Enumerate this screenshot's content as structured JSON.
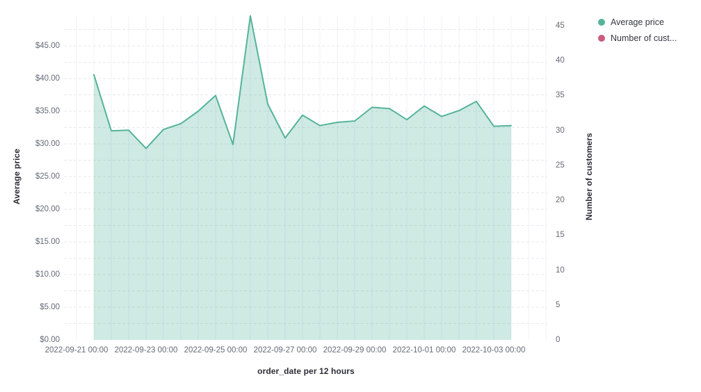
{
  "chart_data": {
    "type": "area",
    "title": "",
    "xlabel": "order_date per 12 hours",
    "y_left_label": "Average price",
    "y_right_label": "Number of customers",
    "x": [
      "2022-09-21 12:00",
      "2022-09-22 00:00",
      "2022-09-22 12:00",
      "2022-09-23 00:00",
      "2022-09-23 12:00",
      "2022-09-24 00:00",
      "2022-09-24 12:00",
      "2022-09-25 00:00",
      "2022-09-25 12:00",
      "2022-09-26 00:00",
      "2022-09-26 12:00",
      "2022-09-27 00:00",
      "2022-09-27 12:00",
      "2022-09-28 00:00",
      "2022-09-28 12:00",
      "2022-09-29 00:00",
      "2022-09-29 12:00",
      "2022-09-30 00:00",
      "2022-09-30 12:00",
      "2022-10-01 00:00",
      "2022-10-01 12:00",
      "2022-10-02 00:00",
      "2022-10-02 12:00",
      "2022-10-03 00:00",
      "2022-10-03 12:00"
    ],
    "series": [
      {
        "name": "Average price",
        "axis": "left",
        "color": "#54b399",
        "fill_opacity": 0.28,
        "values": [
          40.6,
          32.0,
          32.1,
          29.3,
          32.2,
          33.1,
          35.0,
          37.4,
          29.9,
          49.6,
          36.1,
          30.9,
          34.4,
          32.8,
          33.3,
          33.5,
          35.6,
          35.4,
          33.7,
          35.8,
          34.2,
          35.1,
          36.5,
          32.7,
          32.8
        ]
      },
      {
        "name": "Number of customers",
        "axis": "right",
        "color": "#cc5b7e",
        "values": []
      }
    ],
    "x_tick_labels": [
      "2022-09-21 00:00",
      "2022-09-23 00:00",
      "2022-09-25 00:00",
      "2022-09-27 00:00",
      "2022-09-29 00:00",
      "2022-10-01 00:00",
      "2022-10-03 00:00"
    ],
    "y_left_ticks": [
      "$0.00",
      "$5.00",
      "$10.00",
      "$15.00",
      "$20.00",
      "$25.00",
      "$30.00",
      "$35.00",
      "$40.00",
      "$45.00"
    ],
    "y_right_ticks": [
      "0",
      "5",
      "10",
      "15",
      "20",
      "25",
      "30",
      "35",
      "40",
      "45"
    ],
    "y_left_range": [
      0,
      49.8
    ],
    "y_right_range": [
      0,
      46.5
    ],
    "grid": true,
    "legend_position": "top-right",
    "legend": [
      {
        "label": "Average price",
        "color": "#54b399"
      },
      {
        "label": "Number of cust...",
        "color": "#cc5b7e"
      }
    ],
    "colors": {
      "grid_vertical": "#edf0f4",
      "grid_horizontal": "#e4e8ee",
      "tick_text": "#646a77",
      "axis_title_text": "#2b2d36",
      "background": "#ffffff"
    }
  }
}
